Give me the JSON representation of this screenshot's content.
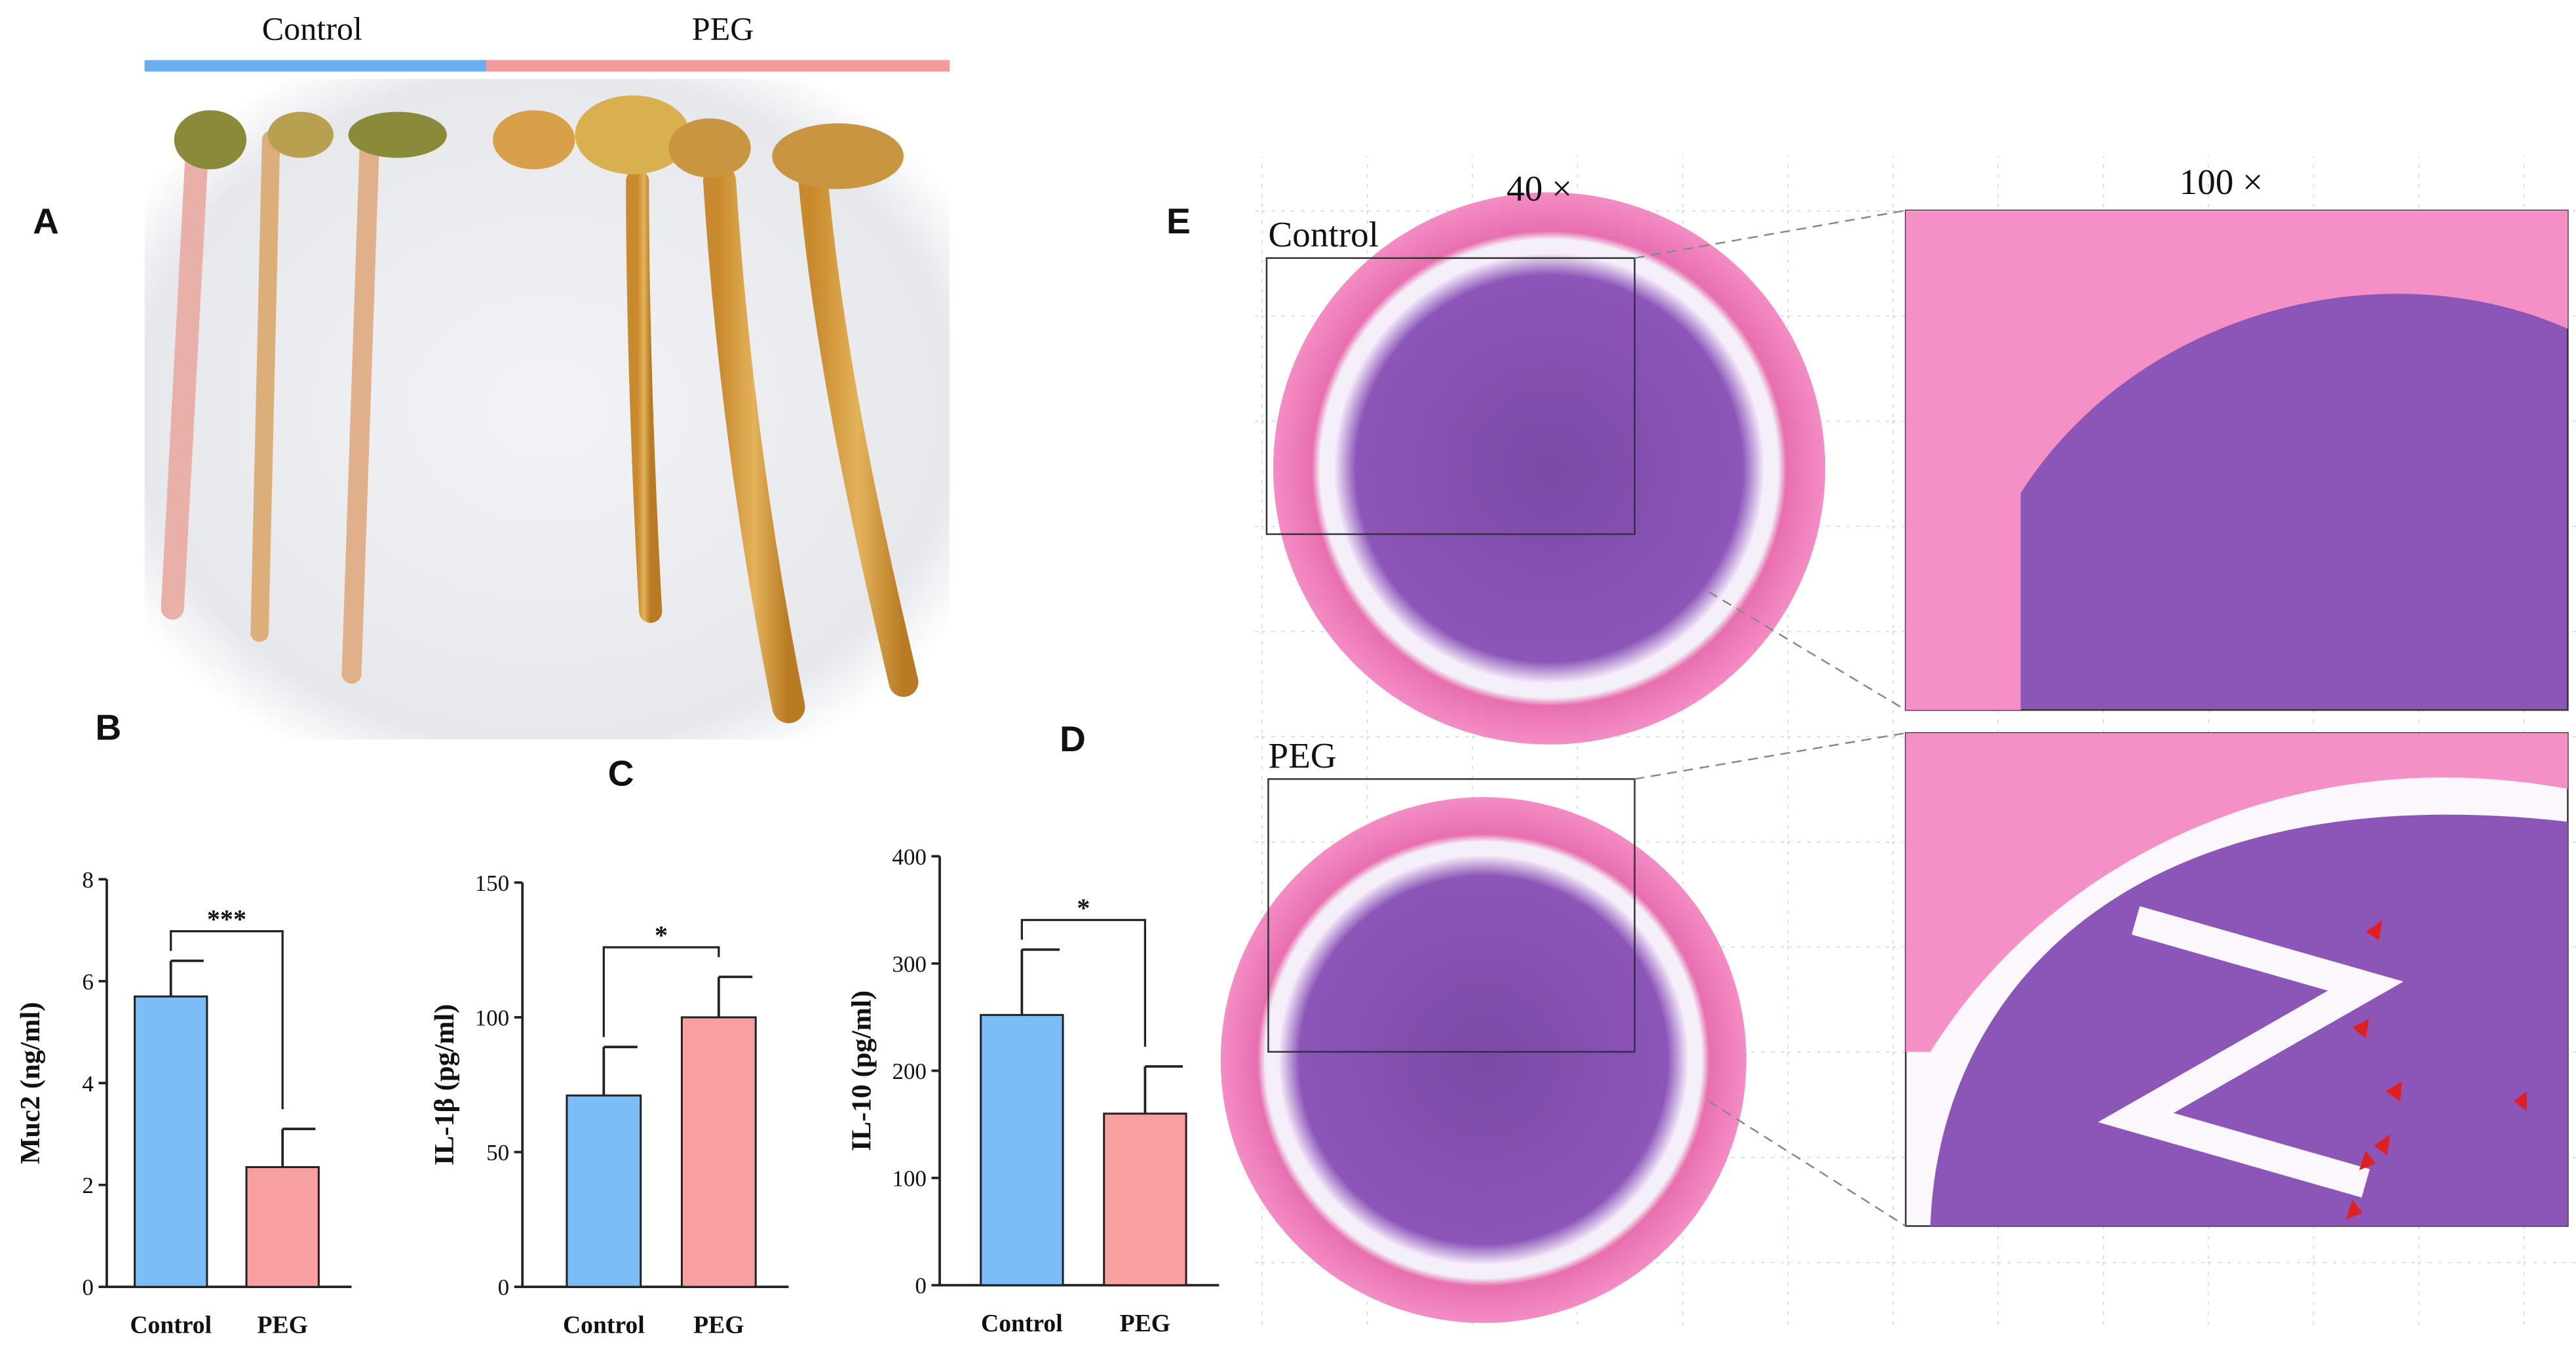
{
  "panel_labels": [
    "A",
    "B",
    "C",
    "D",
    "E"
  ],
  "photo_groups": [
    "Control",
    "PEG"
  ],
  "histology": {
    "magnifications": [
      "40 ×",
      "100 ×"
    ],
    "rows": [
      "Control",
      "PEG"
    ]
  },
  "chart_data": [
    {
      "type": "bar",
      "y_label": "Muc2 (ng/ml)",
      "categories": [
        "Control",
        "PEG"
      ],
      "values": [
        5.7,
        2.35
      ],
      "errors": [
        0.7,
        0.75
      ],
      "colors": [
        "#7bbdf7",
        "#f8a0a0"
      ],
      "ylim": [
        0,
        8
      ],
      "yticks": [
        0,
        2,
        4,
        6,
        8
      ],
      "annotation": "***"
    },
    {
      "type": "bar",
      "y_label": "IL-1β (pg/ml)",
      "categories": [
        "Control",
        "PEG"
      ],
      "values": [
        71,
        100
      ],
      "errors": [
        18,
        15
      ],
      "colors": [
        "#7bbdf7",
        "#f8a0a0"
      ],
      "ylim": [
        0,
        150
      ],
      "yticks": [
        0,
        50,
        100,
        150
      ],
      "annotation": "*"
    },
    {
      "type": "bar",
      "y_label": "IL-10 (pg/ml)",
      "categories": [
        "Control",
        "PEG"
      ],
      "values": [
        252,
        160
      ],
      "errors": [
        61,
        44
      ],
      "colors": [
        "#7bbdf7",
        "#f8a0a0"
      ],
      "ylim": [
        0,
        400
      ],
      "yticks": [
        0,
        100,
        200,
        300,
        400
      ],
      "annotation": "*"
    }
  ]
}
